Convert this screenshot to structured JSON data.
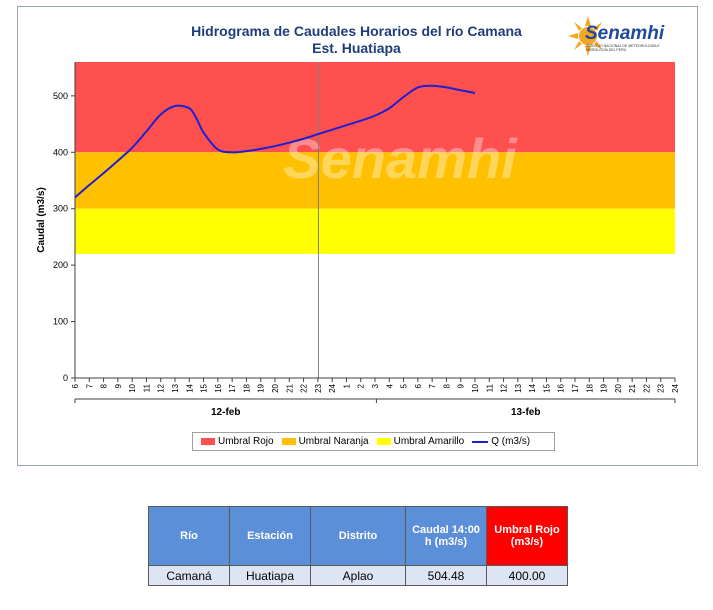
{
  "chart_data": {
    "type": "line",
    "title": "Hidrograma de Caudales Horarios del río Camana",
    "subtitle": "Est. Huatiapa",
    "ylabel": "Caudal  (m3/s)",
    "xlabel": "",
    "ylim": [
      0,
      560
    ],
    "yticks": [
      0,
      100,
      200,
      300,
      400,
      500
    ],
    "hour_ticks": [
      "6",
      "7",
      "8",
      "9",
      "10",
      "11",
      "12",
      "13",
      "14",
      "15",
      "16",
      "17",
      "18",
      "19",
      "20",
      "21",
      "22",
      "23",
      "24",
      "1",
      "2",
      "3",
      "4",
      "5",
      "6",
      "7",
      "8",
      "9",
      "10",
      "11",
      "12",
      "13",
      "14",
      "15",
      "16",
      "17",
      "18",
      "19",
      "20",
      "21",
      "22",
      "23",
      "24"
    ],
    "day_labels": [
      "12-feb",
      "13-feb"
    ],
    "thresholds": [
      {
        "name": "Umbral Rojo",
        "from": 400,
        "to": 560,
        "color": "#ff5050"
      },
      {
        "name": "Umbral Naranja",
        "from": 300,
        "to": 400,
        "color": "#ffc000"
      },
      {
        "name": "Umbral Amarillo",
        "from": 220,
        "to": 300,
        "color": "#ffff00"
      }
    ],
    "series": [
      {
        "name": "Q (m3/s)",
        "color": "#1f1fd0",
        "x_index": [
          0,
          1,
          2,
          3,
          4,
          5,
          6,
          7,
          8,
          8.5,
          9,
          10,
          11,
          12,
          13,
          14,
          15,
          16,
          17,
          18,
          19,
          20,
          21,
          22,
          23,
          24,
          25,
          26,
          27,
          28
        ],
        "values": [
          320,
          342,
          363,
          385,
          408,
          437,
          467,
          482,
          478,
          460,
          435,
          405,
          400,
          402,
          406,
          411,
          417,
          424,
          432,
          440,
          448,
          456,
          465,
          478,
          498,
          515,
          518,
          515,
          510,
          505
        ]
      }
    ],
    "grid": false,
    "legend_position": "bottom"
  },
  "watermark": "Senamhi",
  "logo": {
    "word": "Senamhi",
    "sub": "SERVICIO NACIONAL DE METEOROLOGÍA E HIDROLOGÍA DEL PERÚ",
    "sun_color": "#f5a623",
    "word_color": "#1f4a9a"
  },
  "table": {
    "headers": [
      "Río",
      "Estación",
      "Distrito",
      "Caudal 14:00 h (m3/s)",
      "Umbral Rojo (m3/s)"
    ],
    "row": [
      "Camaná",
      "Huatiapa",
      "Aplao",
      "504.48",
      "400.00"
    ],
    "header_color": "#5b8fd8",
    "alert_color": "#ff0000"
  }
}
